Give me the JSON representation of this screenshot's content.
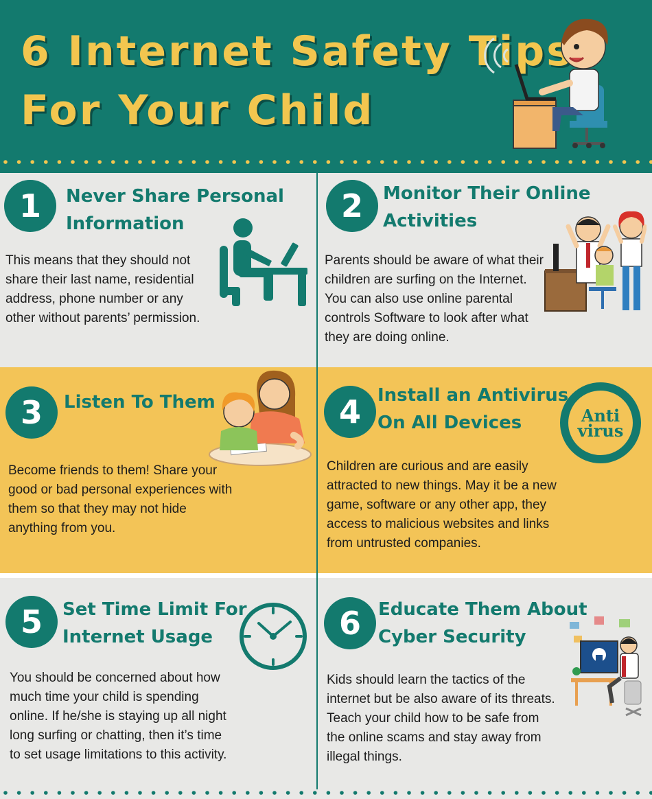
{
  "title": {
    "line1": "6 Internet Safety Tips",
    "line2": "For Your Child"
  },
  "colors": {
    "teal": "#137a6e",
    "yellow": "#f3c457",
    "title_yellow": "#f2c64f",
    "grey": "#e8e8e6"
  },
  "tips": [
    {
      "number": "1",
      "heading": [
        "Never Share Personal",
        "Information"
      ],
      "body": [
        "This means that they should not",
        "share their last name, residential",
        "address, phone number or any",
        "other without parents’ permission."
      ],
      "icon": "person-at-computer-icon"
    },
    {
      "number": "2",
      "heading": [
        "Monitor Their Online",
        "Activities"
      ],
      "body": [
        "Parents should be aware of what their",
        "children are surfing on the Internet.",
        "You can also use online parental",
        "controls Software to look after what",
        "they are doing online."
      ],
      "icon": "parents-watching-child-illustration"
    },
    {
      "number": "3",
      "heading": [
        "Listen To Them"
      ],
      "body": [
        "Become friends to them! Share your",
        "good or bad personal experiences with",
        "them so that they may not hide",
        "anything from you."
      ],
      "icon": "mother-and-child-illustration"
    },
    {
      "number": "4",
      "heading": [
        "Install an Antivirus",
        "On All Devices"
      ],
      "body": [
        "Children are curious and are easily",
        "attracted to new things. May it be a new",
        "game, software or any other app, they",
        "access to malicious websites and links",
        "from untrusted companies."
      ],
      "icon": "antivirus-badge-icon",
      "badge": [
        "Anti",
        "virus"
      ]
    },
    {
      "number": "5",
      "heading": [
        "Set Time Limit For",
        "Internet Usage"
      ],
      "body": [
        "You should be concerned about how",
        "much time your child is spending",
        "online. If he/she is staying up all night",
        "long surfing or chatting, then it’s time",
        "to set usage limitations to this activity."
      ],
      "icon": "clock-icon"
    },
    {
      "number": "6",
      "heading": [
        "Educate Them About",
        "Cyber Security"
      ],
      "body": [
        "Kids should learn the tactics of the",
        "internet but be also aware of its threats.",
        "Teach your child how to be safe from",
        "the online scams and stay away from",
        "illegal things."
      ],
      "icon": "cyber-security-illustration"
    }
  ]
}
